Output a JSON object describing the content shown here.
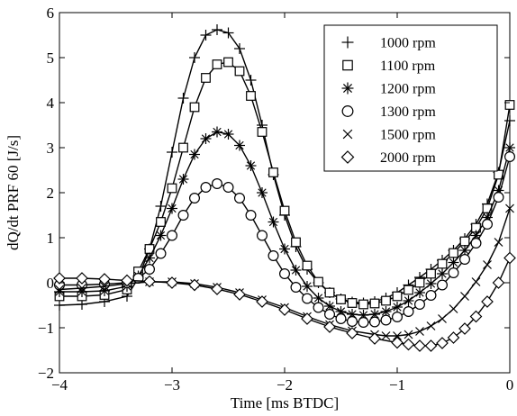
{
  "chart_data": {
    "type": "line",
    "title": "",
    "xlabel": "Time [ms BTDC]",
    "ylabel": "dQ/dt PRF 60 [J/s]",
    "xlim": [
      -4,
      0
    ],
    "ylim": [
      -2,
      6
    ],
    "xticks": [
      -4,
      -3,
      -2,
      -1,
      0
    ],
    "yticks": [
      -2,
      -1,
      0,
      1,
      2,
      3,
      4,
      5,
      6
    ],
    "xtick_labels": [
      "−4",
      "−3",
      "−2",
      "−1",
      "0"
    ],
    "ytick_labels": [
      "−2",
      "−1",
      "0",
      "1",
      "2",
      "3",
      "4",
      "5",
      "6"
    ],
    "grid": false,
    "legend_position": "top-right",
    "series": [
      {
        "name": "1000 rpm",
        "marker": "plus",
        "points": [
          [
            -4,
            -0.5
          ],
          [
            -3.8,
            -0.48
          ],
          [
            -3.6,
            -0.42
          ],
          [
            -3.4,
            -0.3
          ],
          [
            -3.3,
            0.1
          ],
          [
            -3.2,
            0.75
          ],
          [
            -3.1,
            1.7
          ],
          [
            -3.0,
            2.9
          ],
          [
            -2.9,
            4.1
          ],
          [
            -2.8,
            5.0
          ],
          [
            -2.7,
            5.5
          ],
          [
            -2.6,
            5.62
          ],
          [
            -2.5,
            5.55
          ],
          [
            -2.4,
            5.2
          ],
          [
            -2.3,
            4.5
          ],
          [
            -2.2,
            3.5
          ],
          [
            -2.1,
            2.4
          ],
          [
            -2.0,
            1.5
          ],
          [
            -1.9,
            0.8
          ],
          [
            -1.8,
            0.3
          ],
          [
            -1.7,
            0.0
          ],
          [
            -1.6,
            -0.22
          ],
          [
            -1.5,
            -0.36
          ],
          [
            -1.4,
            -0.43
          ],
          [
            -1.3,
            -0.45
          ],
          [
            -1.2,
            -0.42
          ],
          [
            -1.1,
            -0.34
          ],
          [
            -1.0,
            -0.22
          ],
          [
            -0.9,
            -0.05
          ],
          [
            -0.8,
            0.12
          ],
          [
            -0.7,
            0.3
          ],
          [
            -0.6,
            0.5
          ],
          [
            -0.5,
            0.72
          ],
          [
            -0.4,
            0.98
          ],
          [
            -0.3,
            1.3
          ],
          [
            -0.2,
            1.75
          ],
          [
            -0.1,
            2.45
          ],
          [
            0.0,
            3.6
          ]
        ]
      },
      {
        "name": "1100 rpm",
        "marker": "square",
        "points": [
          [
            -4,
            -0.3
          ],
          [
            -3.8,
            -0.3
          ],
          [
            -3.6,
            -0.27
          ],
          [
            -3.4,
            -0.15
          ],
          [
            -3.3,
            0.25
          ],
          [
            -3.2,
            0.75
          ],
          [
            -3.1,
            1.35
          ],
          [
            -3.0,
            2.1
          ],
          [
            -2.9,
            3.0
          ],
          [
            -2.8,
            3.9
          ],
          [
            -2.7,
            4.55
          ],
          [
            -2.6,
            4.85
          ],
          [
            -2.5,
            4.9
          ],
          [
            -2.4,
            4.7
          ],
          [
            -2.3,
            4.15
          ],
          [
            -2.2,
            3.35
          ],
          [
            -2.1,
            2.45
          ],
          [
            -2.0,
            1.6
          ],
          [
            -1.9,
            0.9
          ],
          [
            -1.8,
            0.38
          ],
          [
            -1.7,
            0.02
          ],
          [
            -1.6,
            -0.22
          ],
          [
            -1.5,
            -0.37
          ],
          [
            -1.4,
            -0.45
          ],
          [
            -1.3,
            -0.48
          ],
          [
            -1.2,
            -0.46
          ],
          [
            -1.1,
            -0.4
          ],
          [
            -1.0,
            -0.3
          ],
          [
            -0.9,
            -0.16
          ],
          [
            -0.8,
            0.0
          ],
          [
            -0.7,
            0.2
          ],
          [
            -0.6,
            0.42
          ],
          [
            -0.5,
            0.66
          ],
          [
            -0.4,
            0.92
          ],
          [
            -0.3,
            1.22
          ],
          [
            -0.2,
            1.65
          ],
          [
            -0.1,
            2.4
          ],
          [
            0.0,
            3.95
          ]
        ]
      },
      {
        "name": "1200 rpm",
        "marker": "asterisk",
        "points": [
          [
            -4,
            -0.2
          ],
          [
            -3.8,
            -0.2
          ],
          [
            -3.6,
            -0.18
          ],
          [
            -3.4,
            -0.08
          ],
          [
            -3.3,
            0.15
          ],
          [
            -3.2,
            0.55
          ],
          [
            -3.1,
            1.05
          ],
          [
            -3.0,
            1.65
          ],
          [
            -2.9,
            2.3
          ],
          [
            -2.8,
            2.85
          ],
          [
            -2.7,
            3.2
          ],
          [
            -2.6,
            3.35
          ],
          [
            -2.5,
            3.3
          ],
          [
            -2.4,
            3.05
          ],
          [
            -2.3,
            2.6
          ],
          [
            -2.2,
            2.0
          ],
          [
            -2.1,
            1.35
          ],
          [
            -2.0,
            0.75
          ],
          [
            -1.9,
            0.28
          ],
          [
            -1.8,
            -0.08
          ],
          [
            -1.7,
            -0.34
          ],
          [
            -1.6,
            -0.52
          ],
          [
            -1.5,
            -0.64
          ],
          [
            -1.4,
            -0.7
          ],
          [
            -1.3,
            -0.72
          ],
          [
            -1.2,
            -0.7
          ],
          [
            -1.1,
            -0.64
          ],
          [
            -1.0,
            -0.54
          ],
          [
            -0.9,
            -0.4
          ],
          [
            -0.8,
            -0.22
          ],
          [
            -0.7,
            -0.02
          ],
          [
            -0.6,
            0.2
          ],
          [
            -0.5,
            0.45
          ],
          [
            -0.4,
            0.72
          ],
          [
            -0.3,
            1.05
          ],
          [
            -0.2,
            1.45
          ],
          [
            -0.1,
            2.05
          ],
          [
            0.0,
            3.0
          ]
        ]
      },
      {
        "name": "1300 rpm",
        "marker": "circle",
        "points": [
          [
            -4,
            -0.05
          ],
          [
            -3.8,
            -0.05
          ],
          [
            -3.6,
            -0.03
          ],
          [
            -3.4,
            0.0
          ],
          [
            -3.3,
            0.1
          ],
          [
            -3.2,
            0.3
          ],
          [
            -3.1,
            0.65
          ],
          [
            -3.0,
            1.05
          ],
          [
            -2.9,
            1.5
          ],
          [
            -2.8,
            1.88
          ],
          [
            -2.7,
            2.12
          ],
          [
            -2.6,
            2.2
          ],
          [
            -2.5,
            2.12
          ],
          [
            -2.4,
            1.88
          ],
          [
            -2.3,
            1.5
          ],
          [
            -2.2,
            1.05
          ],
          [
            -2.1,
            0.6
          ],
          [
            -2.0,
            0.2
          ],
          [
            -1.9,
            -0.1
          ],
          [
            -1.8,
            -0.35
          ],
          [
            -1.7,
            -0.55
          ],
          [
            -1.6,
            -0.7
          ],
          [
            -1.5,
            -0.8
          ],
          [
            -1.4,
            -0.86
          ],
          [
            -1.3,
            -0.88
          ],
          [
            -1.2,
            -0.87
          ],
          [
            -1.1,
            -0.83
          ],
          [
            -1.0,
            -0.76
          ],
          [
            -0.9,
            -0.64
          ],
          [
            -0.8,
            -0.48
          ],
          [
            -0.7,
            -0.28
          ],
          [
            -0.6,
            -0.05
          ],
          [
            -0.5,
            0.22
          ],
          [
            -0.4,
            0.52
          ],
          [
            -0.3,
            0.88
          ],
          [
            -0.2,
            1.3
          ],
          [
            -0.1,
            1.9
          ],
          [
            0.0,
            2.8
          ]
        ]
      },
      {
        "name": "1500 rpm",
        "marker": "cross",
        "points": [
          [
            -4,
            -0.15
          ],
          [
            -3.8,
            -0.12
          ],
          [
            -3.6,
            -0.08
          ],
          [
            -3.4,
            -0.02
          ],
          [
            -3.2,
            0.02
          ],
          [
            -3.0,
            0.02
          ],
          [
            -2.8,
            -0.02
          ],
          [
            -2.6,
            -0.1
          ],
          [
            -2.4,
            -0.22
          ],
          [
            -2.2,
            -0.38
          ],
          [
            -2.0,
            -0.55
          ],
          [
            -1.8,
            -0.75
          ],
          [
            -1.6,
            -0.93
          ],
          [
            -1.4,
            -1.07
          ],
          [
            -1.2,
            -1.15
          ],
          [
            -1.1,
            -1.18
          ],
          [
            -1.0,
            -1.18
          ],
          [
            -0.9,
            -1.15
          ],
          [
            -0.8,
            -1.08
          ],
          [
            -0.7,
            -0.96
          ],
          [
            -0.6,
            -0.8
          ],
          [
            -0.5,
            -0.58
          ],
          [
            -0.4,
            -0.3
          ],
          [
            -0.3,
            0.02
          ],
          [
            -0.2,
            0.4
          ],
          [
            -0.1,
            0.9
          ],
          [
            0.0,
            1.65
          ]
        ]
      },
      {
        "name": "2000 rpm",
        "marker": "diamond",
        "points": [
          [
            -4,
            0.1
          ],
          [
            -3.8,
            0.1
          ],
          [
            -3.6,
            0.08
          ],
          [
            -3.4,
            0.05
          ],
          [
            -3.2,
            0.03
          ],
          [
            -3.0,
            0.0
          ],
          [
            -2.8,
            -0.05
          ],
          [
            -2.6,
            -0.14
          ],
          [
            -2.4,
            -0.26
          ],
          [
            -2.2,
            -0.42
          ],
          [
            -2.0,
            -0.6
          ],
          [
            -1.8,
            -0.8
          ],
          [
            -1.6,
            -0.98
          ],
          [
            -1.4,
            -1.12
          ],
          [
            -1.2,
            -1.24
          ],
          [
            -1.0,
            -1.33
          ],
          [
            -0.9,
            -1.37
          ],
          [
            -0.8,
            -1.4
          ],
          [
            -0.7,
            -1.4
          ],
          [
            -0.6,
            -1.34
          ],
          [
            -0.5,
            -1.22
          ],
          [
            -0.4,
            -1.02
          ],
          [
            -0.3,
            -0.75
          ],
          [
            -0.2,
            -0.42
          ],
          [
            -0.1,
            0.0
          ],
          [
            0.0,
            0.55
          ]
        ]
      }
    ]
  }
}
